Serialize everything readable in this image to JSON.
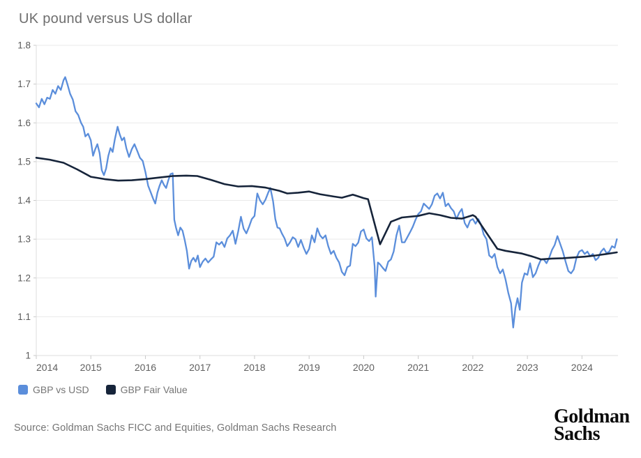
{
  "chart_data": {
    "type": "line",
    "title": "UK pound versus US dollar",
    "xlabel": "",
    "ylabel": "",
    "x_range": [
      2014.0,
      2024.66
    ],
    "y_range": [
      1.0,
      1.8
    ],
    "x_ticks": [
      2014,
      2015,
      2016,
      2017,
      2018,
      2019,
      2020,
      2021,
      2022,
      2023,
      2024
    ],
    "x_tick_labels": [
      "2014",
      "2015",
      "2016",
      "2017",
      "2018",
      "2019",
      "2020",
      "2021",
      "2022",
      "2023",
      "2024"
    ],
    "y_ticks": [
      1,
      1.1,
      1.2,
      1.3,
      1.4,
      1.5,
      1.6,
      1.7,
      1.8
    ],
    "y_tick_labels": [
      "1",
      "1.1",
      "1.2",
      "1.3",
      "1.4",
      "1.5",
      "1.6",
      "1.7",
      "1.8"
    ],
    "grid": "horizontal",
    "legend_position": "bottom-left",
    "colors": {
      "grid": "#e9e9e9",
      "axis": "#dcdcdc",
      "tick": "#c9c9c9",
      "x_tick_label": "#616161",
      "y_tick_label": "#595959"
    },
    "series": [
      {
        "name": "GBP vs USD",
        "color": "#5b8edb",
        "stroke_width": 2.3,
        "points": [
          [
            2014.0,
            1.65
          ],
          [
            2014.05,
            1.64
          ],
          [
            2014.1,
            1.662
          ],
          [
            2014.15,
            1.648
          ],
          [
            2014.2,
            1.665
          ],
          [
            2014.25,
            1.662
          ],
          [
            2014.3,
            1.685
          ],
          [
            2014.35,
            1.675
          ],
          [
            2014.4,
            1.695
          ],
          [
            2014.45,
            1.685
          ],
          [
            2014.5,
            1.71
          ],
          [
            2014.53,
            1.718
          ],
          [
            2014.57,
            1.7
          ],
          [
            2014.62,
            1.675
          ],
          [
            2014.67,
            1.66
          ],
          [
            2014.72,
            1.63
          ],
          [
            2014.77,
            1.62
          ],
          [
            2014.82,
            1.6
          ],
          [
            2014.86,
            1.59
          ],
          [
            2014.9,
            1.565
          ],
          [
            2014.95,
            1.572
          ],
          [
            2015.0,
            1.555
          ],
          [
            2015.04,
            1.515
          ],
          [
            2015.08,
            1.532
          ],
          [
            2015.12,
            1.545
          ],
          [
            2015.16,
            1.522
          ],
          [
            2015.2,
            1.478
          ],
          [
            2015.24,
            1.465
          ],
          [
            2015.28,
            1.482
          ],
          [
            2015.32,
            1.515
          ],
          [
            2015.36,
            1.535
          ],
          [
            2015.4,
            1.525
          ],
          [
            2015.44,
            1.558
          ],
          [
            2015.49,
            1.59
          ],
          [
            2015.53,
            1.57
          ],
          [
            2015.57,
            1.555
          ],
          [
            2015.61,
            1.562
          ],
          [
            2015.65,
            1.535
          ],
          [
            2015.7,
            1.512
          ],
          [
            2015.75,
            1.532
          ],
          [
            2015.8,
            1.545
          ],
          [
            2015.85,
            1.528
          ],
          [
            2015.9,
            1.51
          ],
          [
            2015.95,
            1.502
          ],
          [
            2016.0,
            1.473
          ],
          [
            2016.05,
            1.438
          ],
          [
            2016.1,
            1.42
          ],
          [
            2016.14,
            1.405
          ],
          [
            2016.18,
            1.392
          ],
          [
            2016.22,
            1.42
          ],
          [
            2016.26,
            1.438
          ],
          [
            2016.3,
            1.452
          ],
          [
            2016.34,
            1.44
          ],
          [
            2016.38,
            1.432
          ],
          [
            2016.42,
            1.452
          ],
          [
            2016.46,
            1.468
          ],
          [
            2016.5,
            1.47
          ],
          [
            2016.53,
            1.35
          ],
          [
            2016.56,
            1.33
          ],
          [
            2016.6,
            1.31
          ],
          [
            2016.64,
            1.33
          ],
          [
            2016.68,
            1.322
          ],
          [
            2016.72,
            1.298
          ],
          [
            2016.76,
            1.27
          ],
          [
            2016.8,
            1.224
          ],
          [
            2016.84,
            1.244
          ],
          [
            2016.88,
            1.252
          ],
          [
            2016.92,
            1.242
          ],
          [
            2016.96,
            1.258
          ],
          [
            2017.0,
            1.228
          ],
          [
            2017.05,
            1.242
          ],
          [
            2017.1,
            1.25
          ],
          [
            2017.15,
            1.24
          ],
          [
            2017.2,
            1.248
          ],
          [
            2017.25,
            1.255
          ],
          [
            2017.3,
            1.292
          ],
          [
            2017.35,
            1.286
          ],
          [
            2017.4,
            1.293
          ],
          [
            2017.45,
            1.28
          ],
          [
            2017.5,
            1.302
          ],
          [
            2017.55,
            1.31
          ],
          [
            2017.6,
            1.322
          ],
          [
            2017.65,
            1.288
          ],
          [
            2017.7,
            1.32
          ],
          [
            2017.75,
            1.358
          ],
          [
            2017.8,
            1.327
          ],
          [
            2017.85,
            1.315
          ],
          [
            2017.9,
            1.332
          ],
          [
            2017.95,
            1.352
          ],
          [
            2018.0,
            1.36
          ],
          [
            2018.05,
            1.418
          ],
          [
            2018.1,
            1.4
          ],
          [
            2018.15,
            1.39
          ],
          [
            2018.2,
            1.402
          ],
          [
            2018.25,
            1.42
          ],
          [
            2018.29,
            1.432
          ],
          [
            2018.34,
            1.398
          ],
          [
            2018.38,
            1.352
          ],
          [
            2018.42,
            1.33
          ],
          [
            2018.46,
            1.328
          ],
          [
            2018.5,
            1.315
          ],
          [
            2018.55,
            1.302
          ],
          [
            2018.6,
            1.282
          ],
          [
            2018.65,
            1.292
          ],
          [
            2018.7,
            1.305
          ],
          [
            2018.75,
            1.3
          ],
          [
            2018.8,
            1.28
          ],
          [
            2018.85,
            1.298
          ],
          [
            2018.9,
            1.278
          ],
          [
            2018.95,
            1.262
          ],
          [
            2019.0,
            1.275
          ],
          [
            2019.05,
            1.31
          ],
          [
            2019.1,
            1.292
          ],
          [
            2019.15,
            1.328
          ],
          [
            2019.2,
            1.31
          ],
          [
            2019.25,
            1.302
          ],
          [
            2019.3,
            1.31
          ],
          [
            2019.35,
            1.282
          ],
          [
            2019.4,
            1.262
          ],
          [
            2019.45,
            1.27
          ],
          [
            2019.5,
            1.252
          ],
          [
            2019.55,
            1.24
          ],
          [
            2019.6,
            1.216
          ],
          [
            2019.65,
            1.207
          ],
          [
            2019.7,
            1.228
          ],
          [
            2019.75,
            1.232
          ],
          [
            2019.8,
            1.288
          ],
          [
            2019.85,
            1.282
          ],
          [
            2019.9,
            1.291
          ],
          [
            2019.95,
            1.32
          ],
          [
            2020.0,
            1.325
          ],
          [
            2020.05,
            1.302
          ],
          [
            2020.1,
            1.295
          ],
          [
            2020.15,
            1.305
          ],
          [
            2020.2,
            1.23
          ],
          [
            2020.22,
            1.152
          ],
          [
            2020.26,
            1.24
          ],
          [
            2020.3,
            1.235
          ],
          [
            2020.35,
            1.226
          ],
          [
            2020.4,
            1.218
          ],
          [
            2020.45,
            1.242
          ],
          [
            2020.5,
            1.248
          ],
          [
            2020.55,
            1.268
          ],
          [
            2020.6,
            1.31
          ],
          [
            2020.65,
            1.335
          ],
          [
            2020.7,
            1.292
          ],
          [
            2020.75,
            1.292
          ],
          [
            2020.8,
            1.305
          ],
          [
            2020.85,
            1.318
          ],
          [
            2020.9,
            1.332
          ],
          [
            2020.95,
            1.35
          ],
          [
            2021.0,
            1.365
          ],
          [
            2021.05,
            1.372
          ],
          [
            2021.1,
            1.392
          ],
          [
            2021.15,
            1.385
          ],
          [
            2021.2,
            1.378
          ],
          [
            2021.25,
            1.39
          ],
          [
            2021.3,
            1.412
          ],
          [
            2021.35,
            1.418
          ],
          [
            2021.4,
            1.405
          ],
          [
            2021.45,
            1.42
          ],
          [
            2021.5,
            1.385
          ],
          [
            2021.55,
            1.392
          ],
          [
            2021.6,
            1.38
          ],
          [
            2021.65,
            1.372
          ],
          [
            2021.7,
            1.352
          ],
          [
            2021.75,
            1.368
          ],
          [
            2021.8,
            1.378
          ],
          [
            2021.85,
            1.342
          ],
          [
            2021.9,
            1.33
          ],
          [
            2021.95,
            1.348
          ],
          [
            2022.0,
            1.352
          ],
          [
            2022.05,
            1.34
          ],
          [
            2022.1,
            1.352
          ],
          [
            2022.15,
            1.338
          ],
          [
            2022.2,
            1.312
          ],
          [
            2022.25,
            1.3
          ],
          [
            2022.3,
            1.258
          ],
          [
            2022.35,
            1.252
          ],
          [
            2022.4,
            1.262
          ],
          [
            2022.45,
            1.228
          ],
          [
            2022.5,
            1.212
          ],
          [
            2022.55,
            1.222
          ],
          [
            2022.6,
            1.196
          ],
          [
            2022.65,
            1.162
          ],
          [
            2022.7,
            1.135
          ],
          [
            2022.74,
            1.072
          ],
          [
            2022.78,
            1.122
          ],
          [
            2022.82,
            1.148
          ],
          [
            2022.86,
            1.118
          ],
          [
            2022.9,
            1.188
          ],
          [
            2022.95,
            1.212
          ],
          [
            2023.0,
            1.208
          ],
          [
            2023.05,
            1.238
          ],
          [
            2023.1,
            1.202
          ],
          [
            2023.15,
            1.212
          ],
          [
            2023.2,
            1.232
          ],
          [
            2023.25,
            1.248
          ],
          [
            2023.3,
            1.248
          ],
          [
            2023.35,
            1.238
          ],
          [
            2023.4,
            1.252
          ],
          [
            2023.45,
            1.272
          ],
          [
            2023.5,
            1.285
          ],
          [
            2023.55,
            1.308
          ],
          [
            2023.6,
            1.288
          ],
          [
            2023.65,
            1.268
          ],
          [
            2023.7,
            1.242
          ],
          [
            2023.75,
            1.218
          ],
          [
            2023.8,
            1.212
          ],
          [
            2023.85,
            1.222
          ],
          [
            2023.9,
            1.252
          ],
          [
            2023.95,
            1.268
          ],
          [
            2024.0,
            1.272
          ],
          [
            2024.05,
            1.262
          ],
          [
            2024.1,
            1.268
          ],
          [
            2024.15,
            1.256
          ],
          [
            2024.2,
            1.262
          ],
          [
            2024.25,
            1.246
          ],
          [
            2024.3,
            1.252
          ],
          [
            2024.35,
            1.268
          ],
          [
            2024.4,
            1.276
          ],
          [
            2024.45,
            1.264
          ],
          [
            2024.5,
            1.268
          ],
          [
            2024.55,
            1.282
          ],
          [
            2024.6,
            1.278
          ],
          [
            2024.64,
            1.3
          ]
        ]
      },
      {
        "name": "GBP Fair Value",
        "color": "#16243a",
        "stroke_width": 2.6,
        "points": [
          [
            2014.0,
            1.51
          ],
          [
            2014.25,
            1.505
          ],
          [
            2014.5,
            1.497
          ],
          [
            2014.75,
            1.48
          ],
          [
            2015.0,
            1.461
          ],
          [
            2015.25,
            1.455
          ],
          [
            2015.5,
            1.451
          ],
          [
            2015.75,
            1.452
          ],
          [
            2016.0,
            1.455
          ],
          [
            2016.25,
            1.459
          ],
          [
            2016.5,
            1.463
          ],
          [
            2016.75,
            1.464
          ],
          [
            2016.95,
            1.463
          ],
          [
            2017.2,
            1.453
          ],
          [
            2017.45,
            1.442
          ],
          [
            2017.7,
            1.436
          ],
          [
            2017.95,
            1.437
          ],
          [
            2018.2,
            1.433
          ],
          [
            2018.45,
            1.425
          ],
          [
            2018.6,
            1.418
          ],
          [
            2018.8,
            1.42
          ],
          [
            2019.0,
            1.423
          ],
          [
            2019.2,
            1.416
          ],
          [
            2019.45,
            1.41
          ],
          [
            2019.6,
            1.407
          ],
          [
            2019.8,
            1.415
          ],
          [
            2020.0,
            1.406
          ],
          [
            2020.08,
            1.403
          ],
          [
            2020.3,
            1.287
          ],
          [
            2020.5,
            1.345
          ],
          [
            2020.7,
            1.356
          ],
          [
            2021.0,
            1.36
          ],
          [
            2021.2,
            1.367
          ],
          [
            2021.4,
            1.362
          ],
          [
            2021.6,
            1.355
          ],
          [
            2021.8,
            1.353
          ],
          [
            2022.0,
            1.362
          ],
          [
            2022.05,
            1.358
          ],
          [
            2022.45,
            1.275
          ],
          [
            2022.6,
            1.27
          ],
          [
            2022.9,
            1.263
          ],
          [
            2023.1,
            1.255
          ],
          [
            2023.25,
            1.248
          ],
          [
            2023.45,
            1.25
          ],
          [
            2023.65,
            1.251
          ],
          [
            2023.85,
            1.253
          ],
          [
            2024.05,
            1.255
          ],
          [
            2024.25,
            1.258
          ],
          [
            2024.45,
            1.262
          ],
          [
            2024.64,
            1.266
          ]
        ]
      }
    ]
  },
  "source": {
    "text": "Source: Goldman Sachs FICC and Equities, Goldman Sachs Research"
  },
  "logo": {
    "line1": "Goldman",
    "line2": "Sachs"
  }
}
